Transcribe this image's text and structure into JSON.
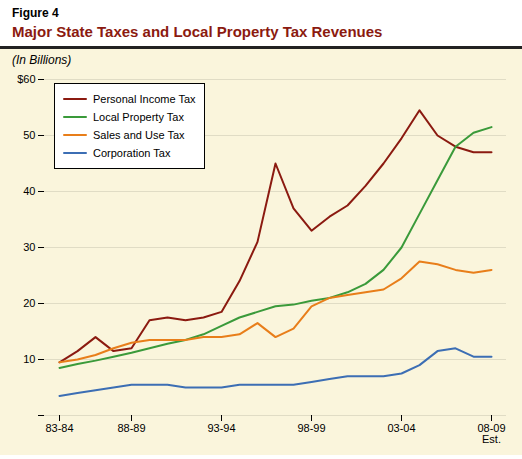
{
  "chart_data": {
    "type": "line",
    "title": "Major State Taxes and Local Property Tax Revenues",
    "subtitle": "(In Billions)",
    "annotations": [
      "Figure 4"
    ],
    "categories": [
      "83-84",
      null,
      null,
      null,
      "88-89",
      null,
      null,
      null,
      null,
      "93-94",
      null,
      null,
      null,
      null,
      "98-99",
      null,
      null,
      null,
      null,
      "03-04",
      null,
      null,
      null,
      null,
      "08-09\nEst."
    ],
    "series": [
      {
        "name": "Personal Income Tax",
        "color": "#8b1a10",
        "values": [
          9.5,
          11.5,
          14.0,
          11.5,
          12.0,
          17.0,
          17.5,
          17.0,
          17.5,
          18.5,
          24.0,
          31.0,
          45.0,
          37.0,
          33.0,
          35.5,
          37.5,
          41.0,
          45.0,
          49.5,
          54.5,
          50.0,
          48.0,
          47.0,
          47.0
        ]
      },
      {
        "name": "Local Property Tax",
        "color": "#3a9a3a",
        "values": [
          8.5,
          9.2,
          9.8,
          10.5,
          11.2,
          12.0,
          12.8,
          13.5,
          14.5,
          16.0,
          17.5,
          18.5,
          19.5,
          19.8,
          20.5,
          21.0,
          22.0,
          23.5,
          26.0,
          30.0,
          36.0,
          42.0,
          48.0,
          50.5,
          51.5
        ]
      },
      {
        "name": "Sales and Use Tax",
        "color": "#e87e1a",
        "values": [
          9.5,
          10.0,
          10.8,
          12.0,
          13.0,
          13.5,
          13.5,
          13.5,
          14.0,
          14.0,
          14.5,
          16.5,
          14.0,
          15.5,
          19.5,
          21.0,
          21.5,
          22.0,
          22.5,
          24.5,
          27.5,
          27.0,
          26.0,
          25.5,
          26.0
        ]
      },
      {
        "name": "Corporation Tax",
        "color": "#3c6eb4",
        "values": [
          3.5,
          4.0,
          4.5,
          5.0,
          5.5,
          5.5,
          5.5,
          5.0,
          5.0,
          5.0,
          5.5,
          5.5,
          5.5,
          5.5,
          6.0,
          6.5,
          7.0,
          7.0,
          7.0,
          7.5,
          9.0,
          11.5,
          12.0,
          10.5,
          10.5
        ]
      }
    ],
    "ylim": [
      0,
      60
    ],
    "yticks": [
      {
        "value": 0,
        "label": ""
      },
      10,
      20,
      30,
      40,
      50,
      {
        "value": 60,
        "label": "$60"
      }
    ],
    "grid": true,
    "legend": "upper left"
  }
}
